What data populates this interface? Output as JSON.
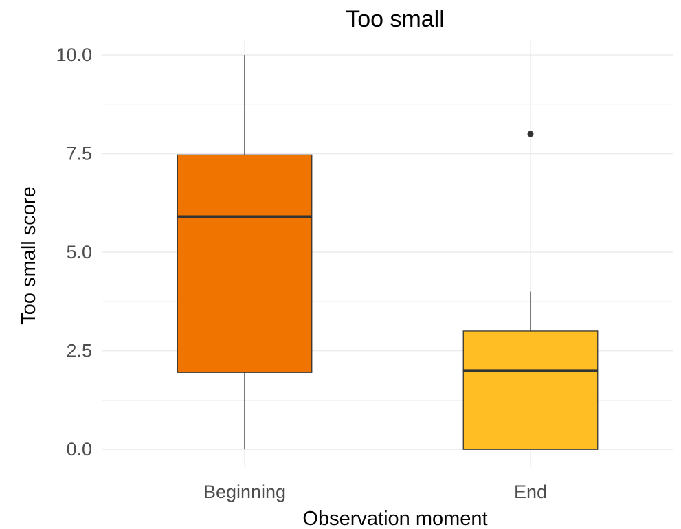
{
  "chart_data": {
    "type": "box",
    "title": "Too small",
    "xlabel": "Observation moment",
    "ylabel": "Too small score",
    "ylim": [
      -0.45,
      10.35
    ],
    "yticks": [
      0,
      2.5,
      5,
      7.5,
      10
    ],
    "ytick_labels": [
      "0.0",
      "2.5",
      "5.0",
      "7.5",
      "10.0"
    ],
    "grid": true,
    "categories": [
      "Beginning",
      "End"
    ],
    "boxes": [
      {
        "category": "Beginning",
        "min": 0,
        "q1": 1.95,
        "median": 5.9,
        "q3": 7.47,
        "max": 10,
        "outliers": [],
        "color": "#ef7500"
      },
      {
        "category": "End",
        "min": 0,
        "q1": 0,
        "median": 2,
        "q3": 3,
        "max": 4,
        "outliers": [
          8
        ],
        "color": "#ffbf24"
      }
    ]
  }
}
